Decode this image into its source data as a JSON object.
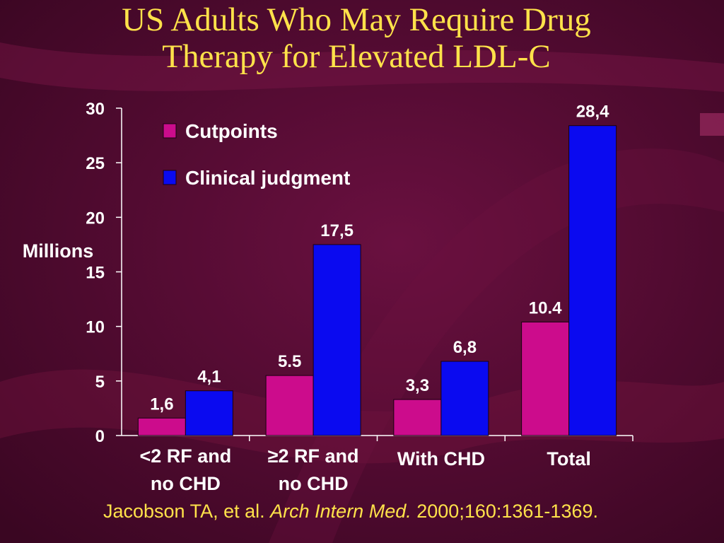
{
  "slide": {
    "title_line1": "US Adults Who May Require Drug",
    "title_line2": "Therapy for Elevated LDL-C",
    "citation_authors": "Jacobson TA, et al.",
    "citation_journal": "Arch Intern Med.",
    "citation_details": "2000;160:1361-1369."
  },
  "colors": {
    "background": "#4a0a2c",
    "title": "#ffe24a",
    "cutpoints": "#cc0c8c",
    "clinical": "#0a0af0",
    "text": "#ffffff"
  },
  "chart_data": {
    "type": "bar",
    "title": "",
    "ylabel": "Millions",
    "xlabel": "",
    "ylim": [
      0,
      30
    ],
    "yticks": [
      "0",
      "5",
      "10",
      "15",
      "20",
      "25",
      "30"
    ],
    "categories": [
      [
        "<2 RF and",
        "no CHD"
      ],
      [
        "≥2 RF and",
        "no CHD"
      ],
      [
        "With CHD"
      ],
      [
        "Total"
      ]
    ],
    "series": [
      {
        "name": "Cutpoints",
        "values": [
          1.6,
          5.5,
          3.3,
          10.4
        ],
        "labels": [
          "1,6",
          "5.5",
          "3,3",
          "10.4"
        ]
      },
      {
        "name": "Clinical judgment",
        "values": [
          4.1,
          17.5,
          6.8,
          28.4
        ],
        "labels": [
          "4,1",
          "17,5",
          "6,8",
          "28,4"
        ]
      }
    ],
    "legend_position": "top-left",
    "grid": false
  }
}
